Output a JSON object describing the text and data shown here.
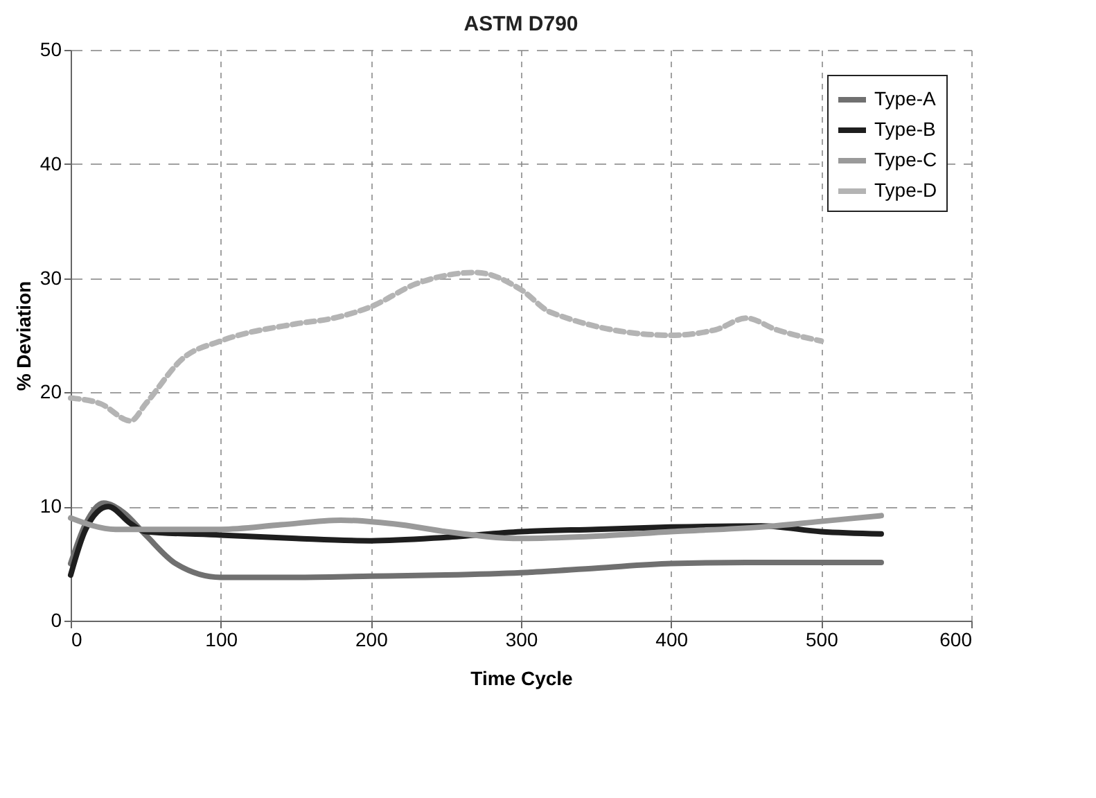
{
  "chart_data": {
    "type": "line",
    "title": "ASTM D790",
    "xlabel": "Time Cycle",
    "ylabel": "% Deviation",
    "xlim": [
      0,
      600
    ],
    "xticks": [
      0,
      100,
      200,
      300,
      400,
      500,
      600
    ],
    "ylim": [
      0,
      50
    ],
    "yticks": [
      0,
      10,
      20,
      30,
      40,
      50
    ],
    "grid": true,
    "legend": "top right",
    "series": [
      {
        "name": "Type-A",
        "color": "#707070",
        "x": [
          0,
          10,
          22,
          35,
          50,
          70,
          100,
          150,
          200,
          250,
          300,
          350,
          400,
          450,
          500,
          540
        ],
        "values": [
          5,
          8.5,
          10.3,
          9.5,
          7.5,
          5,
          3.8,
          3.8,
          3.9,
          4,
          4.2,
          4.6,
          5,
          5.1,
          5.1,
          5.1
        ]
      },
      {
        "name": "Type-B",
        "color": "#1e1e1e",
        "x": [
          0,
          10,
          25,
          40,
          50,
          100,
          150,
          200,
          250,
          300,
          350,
          400,
          460,
          500,
          540
        ],
        "values": [
          4,
          8,
          10,
          8.5,
          7.8,
          7.5,
          7.2,
          7,
          7.3,
          7.8,
          8,
          8.2,
          8.3,
          7.8,
          7.6
        ]
      },
      {
        "name": "Type-C",
        "color": "#9a9a9a",
        "x": [
          0,
          30,
          60,
          100,
          140,
          180,
          220,
          250,
          300,
          350,
          400,
          460,
          500,
          540
        ],
        "values": [
          9,
          8,
          8,
          8,
          8.4,
          8.8,
          8.4,
          7.8,
          7.2,
          7.4,
          7.8,
          8.2,
          8.7,
          9.2
        ]
      },
      {
        "name": "Type-D",
        "color": "#b4b4b4",
        "line_style": "dashed",
        "x": [
          0,
          20,
          40,
          50,
          75,
          100,
          150,
          175,
          200,
          230,
          270,
          300,
          320,
          400,
          430,
          450,
          470,
          500
        ],
        "values": [
          19.5,
          19,
          17.5,
          19,
          23,
          24.5,
          26,
          26.5,
          27.5,
          29.5,
          30.5,
          29,
          27,
          25,
          25.5,
          26.5,
          25.5,
          24.5
        ]
      }
    ]
  }
}
